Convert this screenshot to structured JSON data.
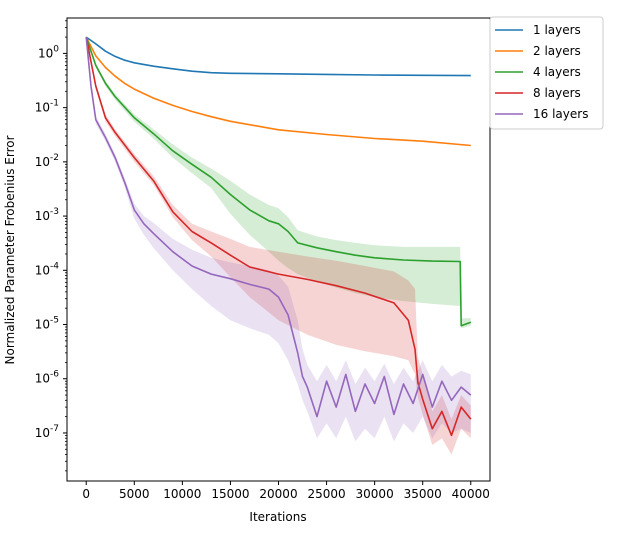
{
  "chart_data": {
    "type": "line",
    "title": "",
    "xlabel": "Iterations",
    "ylabel": "Normalized Parameter Frobenius Error",
    "xlim": [
      -2000,
      42000
    ],
    "ylim": [
      1.3e-08,
      4.5
    ],
    "yscale": "log",
    "grid": false,
    "legend_position": "top-right (outside plot)",
    "x_ticks": [
      0,
      5000,
      10000,
      15000,
      20000,
      25000,
      30000,
      35000,
      40000
    ],
    "x_tick_labels": [
      "0",
      "5000",
      "10000",
      "15000",
      "20000",
      "25000",
      "30000",
      "35000",
      "40000"
    ],
    "y_ticks": [
      1e-07,
      1e-06,
      1e-05,
      0.0001,
      0.001,
      0.01,
      0.1,
      1
    ],
    "y_tick_labels": [
      "10^-7",
      "10^-6",
      "10^-5",
      "10^-4",
      "10^-3",
      "10^-2",
      "10^-1",
      "10^0"
    ],
    "series": [
      {
        "name": "1 layers",
        "color": "#1f77b4",
        "x": [
          0,
          1000,
          2000,
          3000,
          4000,
          5000,
          7000,
          9000,
          11000,
          13000,
          15000,
          20000,
          25000,
          30000,
          35000,
          40000
        ],
        "y": [
          2.0,
          1.5,
          1.1,
          0.88,
          0.75,
          0.67,
          0.58,
          0.52,
          0.47,
          0.44,
          0.43,
          0.42,
          0.41,
          0.4,
          0.395,
          0.39
        ]
      },
      {
        "name": "2 layers",
        "color": "#ff7f0e",
        "x": [
          0,
          1000,
          2000,
          3000,
          4000,
          5000,
          7000,
          9000,
          11000,
          13000,
          15000,
          20000,
          25000,
          30000,
          35000,
          40000
        ],
        "y": [
          2.0,
          0.9,
          0.55,
          0.38,
          0.28,
          0.22,
          0.15,
          0.11,
          0.085,
          0.068,
          0.056,
          0.039,
          0.032,
          0.027,
          0.024,
          0.02
        ]
      },
      {
        "name": "4 layers",
        "color": "#2ca02c",
        "x": [
          0,
          1000,
          2000,
          3000,
          5000,
          7000,
          9000,
          11000,
          13000,
          15000,
          17000,
          19000,
          20000,
          21000,
          22000,
          24000,
          26000,
          28000,
          30000,
          33000,
          36000,
          38900,
          39000,
          40000
        ],
        "y": [
          2.0,
          0.6,
          0.28,
          0.16,
          0.065,
          0.033,
          0.016,
          0.009,
          0.0052,
          0.0025,
          0.0013,
          0.00082,
          0.00072,
          0.00052,
          0.00032,
          0.00026,
          0.00022,
          0.00019,
          0.00017,
          0.000155,
          0.000148,
          0.000145,
          9.5e-06,
          1.1e-05
        ],
        "band_low": [
          1.9,
          0.55,
          0.25,
          0.14,
          0.055,
          0.027,
          0.012,
          0.0062,
          0.0033,
          0.0011,
          0.00045,
          0.00022,
          0.00015,
          0.00011,
          8.5e-05,
          6.2e-05,
          4.8e-05,
          3.8e-05,
          3.2e-05,
          2.7e-05,
          2.4e-05,
          2.2e-05,
          8.5e-06,
          9.5e-06
        ],
        "band_high": [
          2.1,
          0.65,
          0.31,
          0.18,
          0.075,
          0.04,
          0.021,
          0.012,
          0.0075,
          0.0045,
          0.0025,
          0.0016,
          0.0014,
          0.00095,
          0.00055,
          0.00042,
          0.00036,
          0.00032,
          0.00029,
          0.00027,
          0.00027,
          0.00027,
          1.3e-05,
          1.3e-05
        ]
      },
      {
        "name": "8 layers",
        "color": "#d62728",
        "x": [
          0,
          1000,
          2000,
          3000,
          5000,
          7000,
          9000,
          11000,
          13000,
          15000,
          17000,
          20000,
          23000,
          26000,
          29000,
          32000,
          33500,
          34200,
          34500,
          35000,
          36000,
          37000,
          38000,
          39000,
          40000
        ],
        "y": [
          2.0,
          0.25,
          0.065,
          0.035,
          0.012,
          0.0045,
          0.0012,
          0.00052,
          0.00032,
          0.00019,
          0.000115,
          8.5e-05,
          6.8e-05,
          5.2e-05,
          3.8e-05,
          2.5e-05,
          1.2e-05,
          3.5e-06,
          8.5e-07,
          4.2e-07,
          1.2e-07,
          2.5e-07,
          9e-08,
          3e-07,
          1.8e-07
        ],
        "band_low": [
          1.9,
          0.22,
          0.055,
          0.03,
          0.01,
          0.0038,
          0.00095,
          0.00036,
          0.00018,
          7.5e-05,
          3.2e-05,
          1.2e-05,
          6.5e-06,
          4.2e-06,
          3.2e-06,
          2.6e-06,
          2.2e-06,
          1.2e-06,
          4.5e-07,
          2.2e-07,
          6e-08,
          8e-08,
          4e-08,
          1.2e-07,
          8e-08
        ],
        "band_high": [
          2.1,
          0.28,
          0.075,
          0.04,
          0.014,
          0.0055,
          0.0016,
          0.00072,
          0.00052,
          0.00038,
          0.00027,
          0.00022,
          0.00018,
          0.00015,
          0.00012,
          9.5e-05,
          6.5e-05,
          4.5e-05,
          2.5e-06,
          1.2e-06,
          2.5e-07,
          5e-07,
          1.8e-07,
          5e-07,
          3.2e-07
        ]
      },
      {
        "name": "16 layers",
        "color": "#9467bd",
        "x": [
          0,
          500,
          1000,
          2000,
          3000,
          4000,
          5000,
          6000,
          7000,
          9000,
          11000,
          13000,
          15000,
          17000,
          19000,
          20000,
          21000,
          22000,
          22500,
          23000,
          24000,
          25000,
          26000,
          27000,
          28000,
          29000,
          30000,
          31000,
          32000,
          33000,
          34000,
          35000,
          36000,
          37000,
          38000,
          39000,
          40000
        ],
        "y": [
          2.0,
          0.25,
          0.06,
          0.028,
          0.012,
          0.0042,
          0.0013,
          0.00072,
          0.00048,
          0.00022,
          0.00012,
          8.5e-05,
          7e-05,
          5.5e-05,
          4.5e-05,
          3.2e-05,
          1.5e-05,
          3e-06,
          1.1e-06,
          7e-07,
          2e-07,
          9e-07,
          3e-07,
          1.2e-06,
          2.5e-07,
          8e-07,
          3.5e-07,
          1.1e-06,
          2.2e-07,
          8e-07,
          3.5e-07,
          1.2e-06,
          3e-07,
          9e-07,
          4e-07,
          7e-07,
          5e-07
        ],
        "band_low": [
          1.9,
          0.22,
          0.05,
          0.024,
          0.01,
          0.0034,
          0.0009,
          0.00045,
          0.00026,
          0.0001,
          4.5e-05,
          2.2e-05,
          1.2e-05,
          8.5e-06,
          6.5e-06,
          4.5e-06,
          2.2e-06,
          8e-07,
          4e-07,
          2.5e-07,
          8e-08,
          1.5e-07,
          8e-08,
          2e-07,
          7e-08,
          1.2e-07,
          8e-08,
          2e-07,
          7e-08,
          1.5e-07,
          1e-07,
          2e-07,
          8e-08,
          1.5e-07,
          1e-07,
          1.2e-07,
          1e-07
        ],
        "band_high": [
          2.1,
          0.28,
          0.07,
          0.033,
          0.014,
          0.005,
          0.0017,
          0.001,
          0.00075,
          0.00038,
          0.00024,
          0.00017,
          0.00014,
          0.00012,
          0.0001,
          8e-05,
          5e-05,
          1.2e-05,
          3.5e-06,
          1.8e-06,
          9e-07,
          1.8e-06,
          9e-07,
          2.2e-06,
          8e-07,
          1.6e-06,
          9e-07,
          1.9e-06,
          8e-07,
          1.6e-06,
          9e-07,
          2.2e-06,
          9e-07,
          1.8e-06,
          1.1e-06,
          1.4e-06,
          1.2e-06
        ]
      }
    ]
  }
}
